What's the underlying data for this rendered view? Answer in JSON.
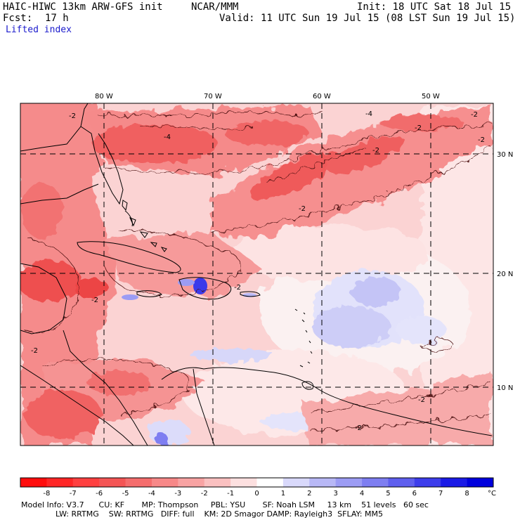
{
  "header": {
    "model": "HAIC-HIWC 13km ARW-GFS init",
    "center": "NCAR/MMM",
    "init": "Init: 18 UTC Sat 18 Jul 15",
    "fcst_label": "Fcst:",
    "fcst_value": "17 h",
    "valid": "Valid: 11 UTC Sun 19 Jul 15 (08 LST Sun 19 Jul 15)",
    "field": "Lifted index"
  },
  "map": {
    "lon_labels": [
      "80 W",
      "70 W",
      "60 W",
      "50 W"
    ],
    "lat_labels": [
      "30 N",
      "20 N",
      "10 N"
    ],
    "contour_label": "-2",
    "contour_label_alt": "-4"
  },
  "colorbar": {
    "labels": [
      "-8",
      "-7",
      "-6",
      "-5",
      "-4",
      "-3",
      "-2",
      "-1",
      "0",
      "1",
      "2",
      "3",
      "4",
      "5",
      "6",
      "7",
      "8"
    ],
    "unit": "°C",
    "colors": [
      "#ff0d0d",
      "#ff2626",
      "#ff4040",
      "#f45555",
      "#f56d6d",
      "#f78888",
      "#f8a3a3",
      "#fac0c0",
      "#fde0e0",
      "#ffffff",
      "#d9d9fb",
      "#b8b8f6",
      "#9c9cf4",
      "#7e7ef1",
      "#5f5fee",
      "#3d3deb",
      "#1a1ae6",
      "#0000dd"
    ]
  },
  "model_info": {
    "line1": "Model Info: V3.7      CU: KF       MP: Thompson     PBL: YSU       SF: Noah LSM     13 km    51 levels   60 sec",
    "line2": "              LW: RRTMG    SW: RRTMG   DIFF: full    KM: 2D Smagor DAMP: Rayleigh3  SFLAY: MM5"
  }
}
